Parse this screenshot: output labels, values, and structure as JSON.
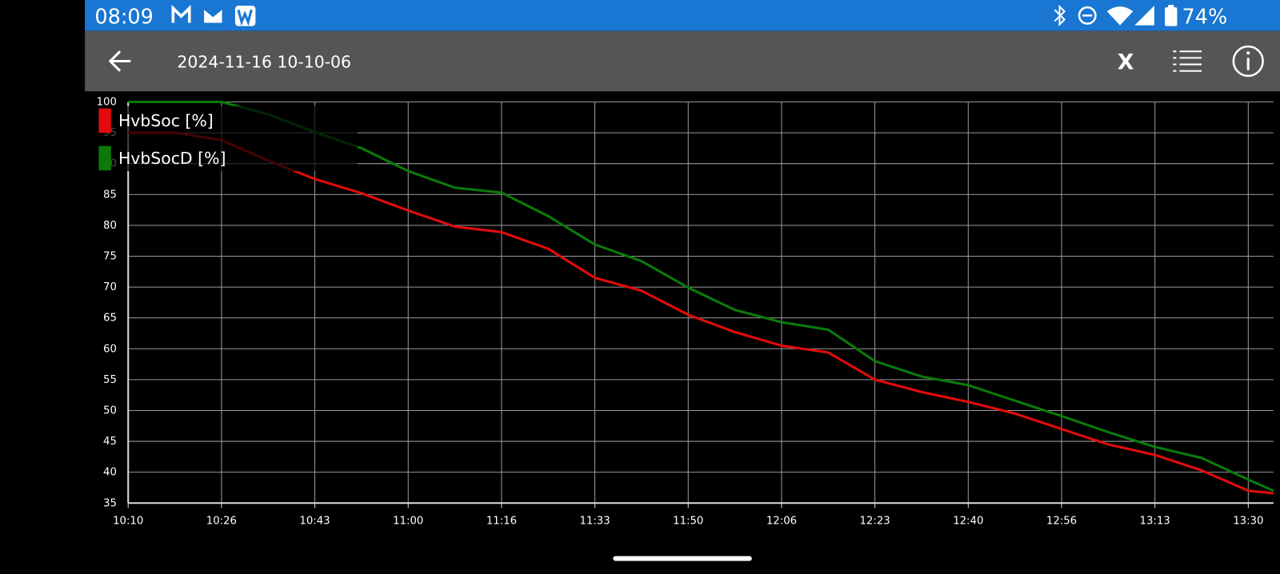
{
  "status_bar": {
    "time": "08:09",
    "battery": "74%"
  },
  "app_bar": {
    "title": "2024-11-16 10-10-06",
    "close": "X"
  },
  "chart_data": {
    "type": "line",
    "x": [
      610,
      618.33,
      626.67,
      635,
      643.33,
      651.67,
      660,
      668.33,
      676.67,
      685,
      693.33,
      701.67,
      710,
      718.33,
      726.67,
      735,
      743.33,
      751.67,
      760,
      768.33,
      776.67,
      785,
      793.33,
      801.67,
      810,
      814.5
    ],
    "series": [
      {
        "name": "HvbSoc [%]",
        "color": "#e30b0b",
        "values": [
          95,
          95,
          93.8,
          90.5,
          87.5,
          85.2,
          82.4,
          79.8,
          78.9,
          76.2,
          71.5,
          69.4,
          65.5,
          62.7,
          60.5,
          59.4,
          55,
          53,
          51.4,
          49.5,
          47,
          44.5,
          42.8,
          40.3,
          37,
          36.6
        ]
      },
      {
        "name": "HvbSocD [%]",
        "color": "#0b7a0b",
        "values": [
          100,
          100,
          100,
          98,
          95.1,
          92.5,
          88.8,
          86.1,
          85.3,
          81.5,
          76.9,
          74.2,
          69.9,
          66.3,
          64.3,
          63.1,
          58,
          55.5,
          54.1,
          51.6,
          49.1,
          46.5,
          44.1,
          42.3,
          38.8,
          37
        ]
      }
    ],
    "xlim": [
      610,
      814.5
    ],
    "xticks": [
      {
        "value": 610,
        "label": "10:10"
      },
      {
        "value": 626.67,
        "label": "10:26"
      },
      {
        "value": 643.33,
        "label": "10:43"
      },
      {
        "value": 660,
        "label": "11:00"
      },
      {
        "value": 676.67,
        "label": "11:16"
      },
      {
        "value": 693.33,
        "label": "11:33"
      },
      {
        "value": 710,
        "label": "11:50"
      },
      {
        "value": 726.67,
        "label": "12:06"
      },
      {
        "value": 743.33,
        "label": "12:23"
      },
      {
        "value": 760,
        "label": "12:40"
      },
      {
        "value": 776.67,
        "label": "12:56"
      },
      {
        "value": 793.33,
        "label": "13:13"
      },
      {
        "value": 810,
        "label": "13:30"
      }
    ],
    "ylim": [
      35,
      100
    ],
    "yticks": [
      35,
      40,
      45,
      50,
      55,
      60,
      65,
      70,
      75,
      80,
      85,
      90,
      95,
      100
    ],
    "grid": true,
    "legend": "top-left"
  }
}
